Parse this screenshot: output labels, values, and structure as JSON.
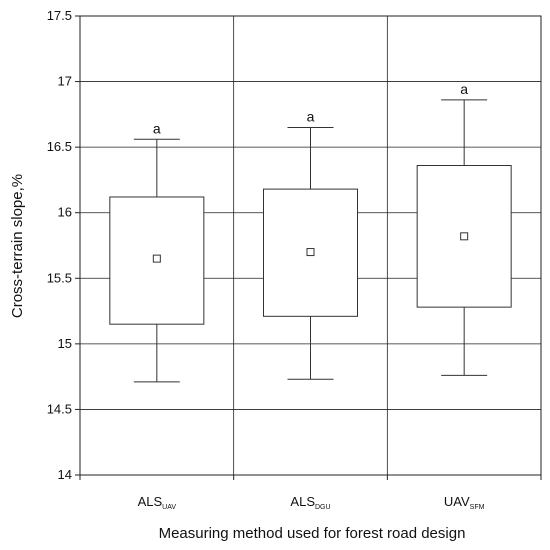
{
  "chart_data": {
    "type": "box",
    "ylabel": "Cross-terrain slope,%",
    "xlabel": "Measuring method used for forest road design",
    "ylim": [
      14,
      17.5
    ],
    "yticks": [
      14,
      14.5,
      15,
      15.5,
      16,
      16.5,
      17,
      17.5
    ],
    "ytick_labels": [
      "14",
      "14.5",
      "15",
      "15.5",
      "16",
      "16.5",
      "17",
      "17.5"
    ],
    "grid": true,
    "categories": [
      {
        "main": "ALS",
        "sub": "UAV"
      },
      {
        "main": "ALS",
        "sub": "DGU"
      },
      {
        "main": "UAV",
        "sub": "SfM"
      }
    ],
    "boxes": [
      {
        "whisker_low": 14.71,
        "q1": 15.15,
        "mean": 15.65,
        "q3": 16.12,
        "whisker_high": 16.56,
        "label": "a"
      },
      {
        "whisker_low": 14.73,
        "q1": 15.21,
        "mean": 15.7,
        "q3": 16.18,
        "whisker_high": 16.65,
        "label": "a"
      },
      {
        "whisker_low": 14.76,
        "q1": 15.28,
        "mean": 15.82,
        "q3": 16.36,
        "whisker_high": 16.86,
        "label": "a"
      }
    ],
    "colors": {
      "box_stroke": "#333333",
      "grid": "#222222",
      "background": "#ffffff"
    }
  }
}
